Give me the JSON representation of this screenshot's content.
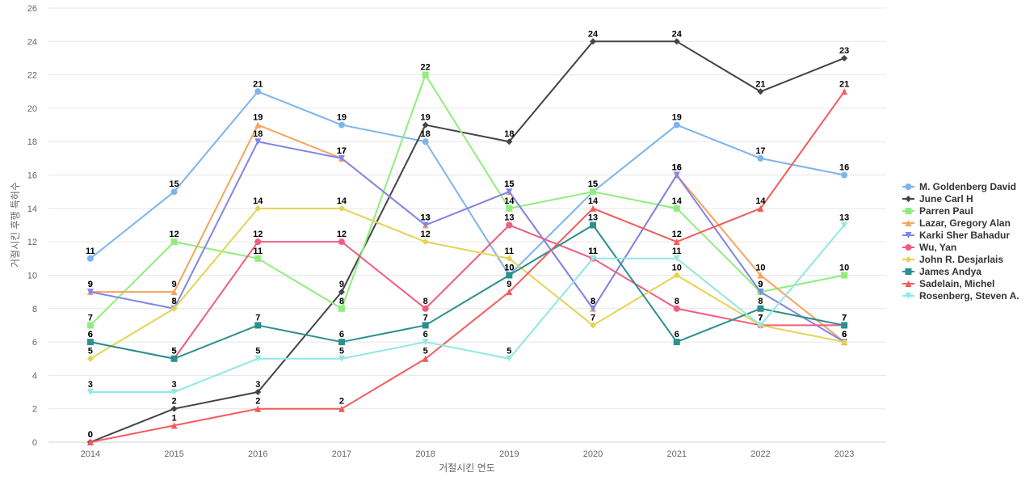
{
  "chart_data": {
    "type": "line",
    "xlabel": "거절시킨 연도",
    "ylabel": "거절시킨 후행 특허수",
    "ylim": [
      0,
      26
    ],
    "yticks": [
      0,
      2,
      4,
      6,
      8,
      10,
      12,
      14,
      16,
      18,
      20,
      22,
      24,
      26
    ],
    "grid": true,
    "legend_position": "right",
    "x": [
      "2014",
      "2015",
      "2016",
      "2017",
      "2018",
      "2019",
      "2020",
      "2021",
      "2022",
      "2023"
    ],
    "series": [
      {
        "name": "M. Goldenberg David",
        "color": "#7cb5ec",
        "marker": "circle",
        "values": [
          11,
          15,
          21,
          19,
          18,
          10,
          15,
          19,
          17,
          16
        ]
      },
      {
        "name": "June Carl H",
        "color": "#434348",
        "marker": "diamond",
        "values": [
          0,
          2,
          3,
          9,
          19,
          18,
          24,
          24,
          21,
          23
        ]
      },
      {
        "name": "Parren Paul",
        "color": "#90ed7d",
        "marker": "square",
        "values": [
          7,
          12,
          11,
          8,
          22,
          14,
          15,
          14,
          9,
          10
        ]
      },
      {
        "name": "Lazar, Gregory Alan",
        "color": "#f7a35c",
        "marker": "triangle",
        "values": [
          9,
          9,
          19,
          17,
          13,
          15,
          8,
          16,
          10,
          6
        ]
      },
      {
        "name": "Karki Sher Bahadur",
        "color": "#8085e9",
        "marker": "triangle-down",
        "values": [
          9,
          8,
          18,
          17,
          13,
          15,
          8,
          16,
          9,
          6
        ]
      },
      {
        "name": "Wu, Yan",
        "color": "#f15c80",
        "marker": "circle",
        "values": [
          6,
          5,
          12,
          12,
          8,
          13,
          11,
          8,
          7,
          7
        ]
      },
      {
        "name": "John R. Desjarlais",
        "color": "#e4d354",
        "marker": "diamond",
        "values": [
          5,
          8,
          14,
          14,
          12,
          11,
          7,
          10,
          7,
          6
        ]
      },
      {
        "name": "James Andya",
        "color": "#2b908f",
        "marker": "square",
        "values": [
          6,
          5,
          7,
          6,
          7,
          10,
          13,
          6,
          8,
          7
        ]
      },
      {
        "name": "Sadelain, Michel",
        "color": "#f45b5b",
        "marker": "triangle",
        "values": [
          0,
          1,
          2,
          2,
          5,
          9,
          14,
          12,
          14,
          21
        ]
      },
      {
        "name": "Rosenberg, Steven A.",
        "color": "#91e8e1",
        "marker": "triangle-down",
        "values": [
          3,
          3,
          5,
          5,
          6,
          5,
          11,
          11,
          7,
          13
        ]
      }
    ]
  }
}
